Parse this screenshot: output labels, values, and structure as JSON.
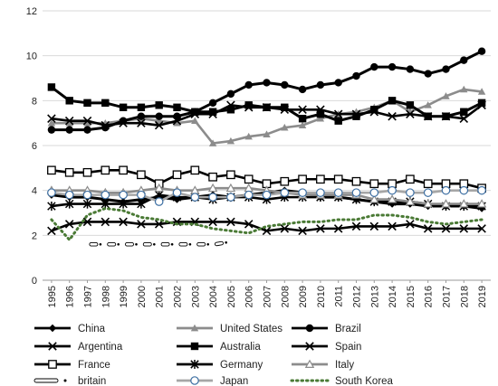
{
  "chart_data": {
    "type": "line",
    "title": "",
    "xlabel": "",
    "ylabel": "",
    "ylim": [
      0,
      12
    ],
    "yticks": [
      0,
      2,
      4,
      6,
      8,
      10,
      12
    ],
    "grid": "horizontal",
    "legend_position": "bottom",
    "x": [
      "1995",
      "1996",
      "1997",
      "1998",
      "1999",
      "2000",
      "2001",
      "2002",
      "2003",
      "2004",
      "2005",
      "2006",
      "2007",
      "2008",
      "2009",
      "2010",
      "2011",
      "2012",
      "2013",
      "2014",
      "2015",
      "2016",
      "2017",
      "2018",
      "2019"
    ],
    "series": [
      {
        "name": "China",
        "color": "#000000",
        "style": "diamond",
        "values": [
          3.8,
          3.7,
          3.7,
          3.6,
          3.5,
          3.6,
          3.7,
          3.6,
          3.7,
          3.8,
          3.7,
          3.8,
          3.9,
          4.0,
          3.9,
          3.7,
          3.7,
          3.6,
          3.5,
          3.4,
          3.4,
          3.3,
          3.3,
          3.3,
          3.2
        ]
      },
      {
        "name": "United States",
        "color": "#8c8c8c",
        "style": "triangle",
        "values": [
          7.0,
          7.0,
          7.0,
          7.0,
          7.1,
          7.2,
          7.1,
          7.0,
          7.1,
          6.1,
          6.2,
          6.4,
          6.5,
          6.8,
          6.9,
          7.2,
          7.4,
          7.5,
          7.7,
          8.0,
          7.5,
          7.8,
          8.2,
          8.5,
          8.4
        ]
      },
      {
        "name": "Brazil",
        "color": "#000000",
        "style": "circle",
        "values": [
          6.7,
          6.7,
          6.7,
          6.8,
          7.1,
          7.3,
          7.3,
          7.3,
          7.5,
          7.9,
          8.3,
          8.7,
          8.8,
          8.7,
          8.5,
          8.7,
          8.8,
          9.1,
          9.5,
          9.5,
          9.4,
          9.2,
          9.4,
          9.8,
          10.2
        ]
      },
      {
        "name": "Argentina",
        "color": "#000000",
        "style": "x",
        "values": [
          7.2,
          7.1,
          7.1,
          6.9,
          7.0,
          7.0,
          6.9,
          7.1,
          7.4,
          7.4,
          7.8,
          7.7,
          7.7,
          7.6,
          7.6,
          7.6,
          7.4,
          7.4,
          7.5,
          7.3,
          7.4,
          7.3,
          7.3,
          7.2,
          7.8
        ]
      },
      {
        "name": "Australia",
        "color": "#000000",
        "style": "square",
        "values": [
          8.6,
          8.0,
          7.9,
          7.9,
          7.7,
          7.7,
          7.8,
          7.7,
          7.5,
          7.5,
          7.6,
          7.8,
          7.7,
          7.7,
          7.2,
          7.4,
          7.1,
          7.3,
          7.6,
          8.0,
          7.8,
          7.3,
          7.3,
          7.5,
          7.9
        ]
      },
      {
        "name": "Spain",
        "color": "#000000",
        "style": "x",
        "values": [
          2.2,
          2.5,
          2.6,
          2.6,
          2.6,
          2.5,
          2.5,
          2.6,
          2.6,
          2.6,
          2.6,
          2.5,
          2.2,
          2.3,
          2.2,
          2.3,
          2.3,
          2.4,
          2.4,
          2.4,
          2.5,
          2.3,
          2.3,
          2.3,
          2.3
        ]
      },
      {
        "name": "France",
        "color": "#000000",
        "style": "square-open",
        "values": [
          4.9,
          4.8,
          4.8,
          4.9,
          4.9,
          4.7,
          4.3,
          4.7,
          4.9,
          4.6,
          4.7,
          4.5,
          4.3,
          4.4,
          4.5,
          4.5,
          4.5,
          4.4,
          4.3,
          4.3,
          4.5,
          4.3,
          4.3,
          4.3,
          4.1
        ]
      },
      {
        "name": "Germany",
        "color": "#000000",
        "style": "asterisk",
        "values": [
          3.3,
          3.4,
          3.4,
          3.4,
          3.4,
          3.4,
          3.8,
          3.7,
          3.7,
          3.6,
          3.7,
          3.7,
          3.6,
          3.7,
          3.7,
          3.7,
          3.7,
          3.6,
          3.5,
          3.5,
          3.5,
          3.4,
          3.3,
          3.3,
          3.3
        ]
      },
      {
        "name": "Italy",
        "color": "#8c8c8c",
        "style": "triangle-open",
        "values": [
          4.0,
          4.0,
          4.0,
          3.9,
          3.9,
          4.0,
          4.1,
          4.0,
          4.0,
          4.1,
          4.1,
          4.1,
          4.0,
          3.9,
          3.8,
          3.8,
          3.8,
          3.8,
          3.6,
          3.6,
          3.5,
          3.4,
          3.4,
          3.4,
          3.4
        ]
      },
      {
        "name": "britain",
        "color": "#000000",
        "style": "outline-dotted",
        "values": [
          null,
          null,
          1.6,
          1.6,
          1.6,
          1.6,
          1.6,
          1.6,
          1.6,
          1.6,
          1.7,
          null,
          null,
          null,
          null,
          null,
          null,
          null,
          null,
          null,
          null,
          null,
          null,
          null,
          null
        ]
      },
      {
        "name": "Japan",
        "color": "#8c8c8c",
        "style": "circle-open",
        "values": [
          3.9,
          3.8,
          3.8,
          3.8,
          3.8,
          3.8,
          3.5,
          3.9,
          3.7,
          3.7,
          3.7,
          3.8,
          3.8,
          3.9,
          3.9,
          3.9,
          3.9,
          3.9,
          3.9,
          4.0,
          3.9,
          3.9,
          4.0,
          4.0,
          4.0
        ]
      },
      {
        "name": "South Korea",
        "color": "#4a7a35",
        "style": "dotted",
        "values": [
          2.7,
          1.8,
          2.9,
          3.2,
          3.1,
          2.8,
          2.7,
          2.5,
          2.5,
          2.3,
          2.2,
          2.1,
          2.4,
          2.5,
          2.6,
          2.6,
          2.7,
          2.7,
          2.9,
          2.9,
          2.8,
          2.6,
          2.5,
          2.6,
          2.7
        ]
      }
    ]
  }
}
